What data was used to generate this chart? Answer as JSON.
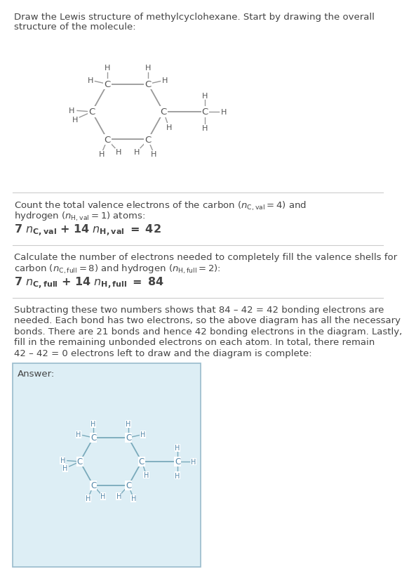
{
  "bg_color": "#ffffff",
  "answer_box_color": "#ddeef5",
  "text_color": "#444444",
  "bond_color": "#999999",
  "atom_color": "#555555",
  "ans_bond_color": "#7aaabb",
  "ans_atom_color": "#5588aa",
  "title1": "Draw the Lewis structure of methylcyclohexane. Start by drawing the overall",
  "title2": "structure of the molecule:",
  "s1_line1": "Count the total valence electrons of the carbon (",
  "s1_math1": "n_{C,val} = 4",
  "s1_line2": ") and",
  "s1_line3": "hydrogen (",
  "s1_math2": "n_{H,val} = 1",
  "s1_line4": ") atoms:",
  "s1_eq": "7 n_{C,val} + 14 n_{H,val} = 42",
  "s2_line1": "Calculate the number of electrons needed to completely fill the valence shells for",
  "s2_line2a": "carbon (",
  "s2_math1": "n_{C,full} = 8",
  "s2_line2b": ") and hydrogen (",
  "s2_math2": "n_{H,full} = 2",
  "s2_line2c": "):",
  "s2_eq": "7 n_{C,full} + 14 n_{H,full} = 84",
  "s3_lines": [
    "Subtracting these two numbers shows that 84 – 42 = 42 bonding electrons are",
    "needed. Each bond has two electrons, so the above diagram has all the necessary",
    "bonds. There are 21 bonds and hence 42 bonding electrons in the diagram. Lastly,",
    "fill in the remaining unbonded electrons on each atom. In total, there remain",
    "42 – 42 = 0 electrons left to draw and the diagram is complete:"
  ],
  "answer_label": "Answer:"
}
